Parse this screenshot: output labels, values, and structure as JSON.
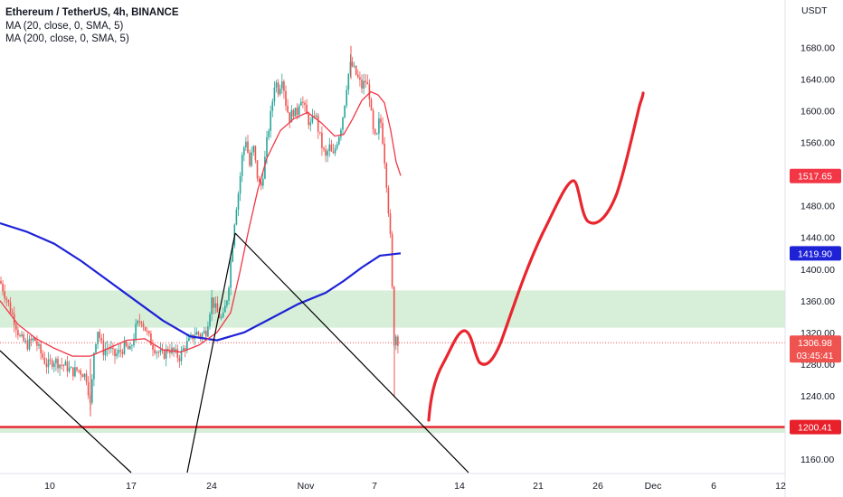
{
  "legend": {
    "title": "Ethereum / TetherUS, 4h, BINANCE",
    "ma20": "MA (20, close, 0, SMA, 5)",
    "ma200": "MA (200, close, 0, SMA, 5)"
  },
  "currency": "USDT",
  "colors": {
    "up": "#26a69a",
    "down": "#ef5350",
    "ma20": "#f23645",
    "ma200": "#1e22d6",
    "support_line": "#e8202a",
    "zone_fill": "#d7eed9",
    "current_badge": "#ef5350",
    "ma20_badge": "#f23645",
    "ma200_badge": "#1e22d6",
    "support_badge": "#e8202a",
    "drawing": "#e8262e",
    "trendline": "#000000"
  },
  "chart_data": {
    "type": "candlestick",
    "ylim": [
      1150,
      1700
    ],
    "y_ticks": [
      "1160.00",
      "1200.00",
      "1240.00",
      "1280.00",
      "1320.00",
      "1360.00",
      "1400.00",
      "1440.00",
      "1480.00",
      "1520.00",
      "1560.00",
      "1600.00",
      "1640.00",
      "1680.00"
    ],
    "x_ticks": [
      "10",
      "17",
      "24",
      "Nov",
      "7",
      "14",
      "21",
      "26",
      "Dec",
      "6",
      "12"
    ],
    "price_labels": {
      "ma20": "1517.65",
      "ma200": "1419.90",
      "current": "1306.98",
      "countdown": "03:45:41",
      "support": "1200.41"
    },
    "support_level": 1200.41,
    "zone": [
      1326,
      1373
    ],
    "zone2": [
      1193,
      1200
    ],
    "trend": [
      [
        0,
        1385
      ],
      [
        8,
        1360
      ],
      [
        16,
        1335
      ],
      [
        22,
        1313
      ],
      [
        30,
        1304
      ],
      [
        38,
        1312
      ],
      [
        44,
        1296
      ],
      [
        52,
        1278
      ],
      [
        60,
        1285
      ],
      [
        66,
        1280
      ],
      [
        72,
        1278
      ],
      [
        80,
        1270
      ],
      [
        86,
        1273
      ],
      [
        92,
        1268
      ],
      [
        96,
        1262
      ],
      [
        100,
        1225
      ],
      [
        104,
        1298
      ],
      [
        108,
        1324
      ],
      [
        114,
        1296
      ],
      [
        120,
        1302
      ],
      [
        126,
        1290
      ],
      [
        132,
        1295
      ],
      [
        138,
        1302
      ],
      [
        144,
        1296
      ],
      [
        150,
        1325
      ],
      [
        156,
        1338
      ],
      [
        162,
        1320
      ],
      [
        168,
        1305
      ],
      [
        174,
        1296
      ],
      [
        180,
        1290
      ],
      [
        186,
        1300
      ],
      [
        192,
        1295
      ],
      [
        198,
        1288
      ],
      [
        204,
        1302
      ],
      [
        210,
        1310
      ],
      [
        216,
        1320
      ],
      [
        222,
        1316
      ],
      [
        228,
        1322
      ],
      [
        234,
        1362
      ],
      [
        240,
        1345
      ],
      [
        246,
        1335
      ],
      [
        252,
        1370
      ],
      [
        256,
        1420
      ],
      [
        260,
        1470
      ],
      [
        264,
        1500
      ],
      [
        268,
        1545
      ],
      [
        272,
        1565
      ],
      [
        276,
        1530
      ],
      [
        280,
        1555
      ],
      [
        284,
        1520
      ],
      [
        288,
        1500
      ],
      [
        292,
        1530
      ],
      [
        296,
        1570
      ],
      [
        300,
        1600
      ],
      [
        304,
        1640
      ],
      [
        308,
        1625
      ],
      [
        312,
        1645
      ],
      [
        316,
        1610
      ],
      [
        320,
        1590
      ],
      [
        324,
        1600
      ],
      [
        328,
        1595
      ],
      [
        332,
        1620
      ],
      [
        336,
        1605
      ],
      [
        340,
        1590
      ],
      [
        344,
        1580
      ],
      [
        348,
        1600
      ],
      [
        352,
        1575
      ],
      [
        356,
        1555
      ],
      [
        360,
        1540
      ],
      [
        364,
        1555
      ],
      [
        368,
        1540
      ],
      [
        372,
        1560
      ],
      [
        376,
        1575
      ],
      [
        380,
        1600
      ],
      [
        384,
        1640
      ],
      [
        388,
        1660
      ],
      [
        392,
        1650
      ],
      [
        396,
        1640
      ],
      [
        400,
        1630
      ],
      [
        404,
        1638
      ],
      [
        408,
        1625
      ],
      [
        412,
        1575
      ],
      [
        416,
        1560
      ],
      [
        420,
        1595
      ],
      [
        424,
        1555
      ],
      [
        428,
        1500
      ],
      [
        432,
        1430
      ],
      [
        434,
        1360
      ],
      [
        436,
        1300
      ],
      [
        438,
        1318
      ],
      [
        441,
        1305
      ]
    ],
    "ma20": [
      [
        0,
        1360
      ],
      [
        20,
        1330
      ],
      [
        40,
        1312
      ],
      [
        60,
        1300
      ],
      [
        80,
        1290
      ],
      [
        100,
        1290
      ],
      [
        120,
        1300
      ],
      [
        140,
        1310
      ],
      [
        160,
        1312
      ],
      [
        180,
        1298
      ],
      [
        200,
        1295
      ],
      [
        220,
        1304
      ],
      [
        240,
        1320
      ],
      [
        255,
        1345
      ],
      [
        265,
        1395
      ],
      [
        275,
        1450
      ],
      [
        285,
        1500
      ],
      [
        295,
        1540
      ],
      [
        310,
        1575
      ],
      [
        325,
        1590
      ],
      [
        340,
        1598
      ],
      [
        355,
        1585
      ],
      [
        370,
        1568
      ],
      [
        380,
        1570
      ],
      [
        390,
        1590
      ],
      [
        400,
        1613
      ],
      [
        410,
        1624
      ],
      [
        418,
        1620
      ],
      [
        425,
        1610
      ],
      [
        432,
        1575
      ],
      [
        438,
        1535
      ],
      [
        443,
        1518
      ]
    ],
    "ma200": [
      [
        0,
        1458
      ],
      [
        30,
        1447
      ],
      [
        60,
        1432
      ],
      [
        90,
        1410
      ],
      [
        120,
        1385
      ],
      [
        150,
        1360
      ],
      [
        180,
        1335
      ],
      [
        210,
        1315
      ],
      [
        240,
        1310
      ],
      [
        270,
        1320
      ],
      [
        300,
        1338
      ],
      [
        330,
        1356
      ],
      [
        360,
        1370
      ],
      [
        380,
        1385
      ],
      [
        400,
        1402
      ],
      [
        420,
        1417
      ],
      [
        443,
        1419.9
      ]
    ]
  }
}
